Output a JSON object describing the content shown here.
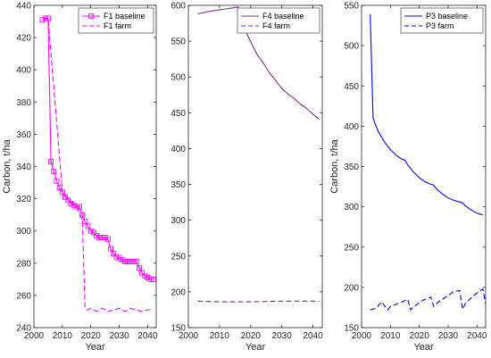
{
  "chart_data": [
    {
      "type": "line",
      "xlabel": "Year",
      "ylabel": "Carbon, t/ha",
      "xlim": [
        2000,
        2043
      ],
      "ylim": [
        240,
        440
      ],
      "xticks": [
        2000,
        2010,
        2020,
        2030,
        2040
      ],
      "yticks": [
        240,
        260,
        280,
        300,
        320,
        340,
        360,
        380,
        400,
        420,
        440
      ],
      "color": "#ff00ff",
      "legend_position": "top-right",
      "series": [
        {
          "name": "F1 baseline",
          "style": "solid",
          "marker": "square",
          "x": [
            2003,
            2004,
            2005,
            2006,
            2007,
            2008,
            2009,
            2010,
            2011,
            2012,
            2013,
            2014,
            2015,
            2016,
            2017,
            2018,
            2019,
            2020,
            2021,
            2022,
            2023,
            2024,
            2025,
            2026,
            2027,
            2028,
            2029,
            2030,
            2031,
            2032,
            2033,
            2034,
            2035,
            2036,
            2037,
            2038,
            2039,
            2040,
            2041,
            2042
          ],
          "y": [
            431,
            432,
            432,
            343,
            337,
            331,
            327,
            324,
            321,
            319,
            317,
            316,
            315,
            315,
            310,
            306,
            303,
            300,
            299,
            297,
            296,
            296,
            296,
            295,
            289,
            286,
            284,
            283,
            282,
            281,
            281,
            281,
            281,
            281,
            277,
            274,
            272,
            271,
            270,
            270
          ]
        },
        {
          "name": "F1 farm",
          "style": "dashed",
          "x": [
            2003,
            2005,
            2010,
            2015,
            2017,
            2018,
            2019,
            2020,
            2022,
            2024,
            2026,
            2028,
            2030,
            2032,
            2034,
            2036,
            2038,
            2040,
            2042
          ],
          "y": [
            431,
            432,
            324,
            315,
            307,
            252,
            251,
            252,
            250,
            252,
            250,
            251,
            252,
            250,
            252,
            251,
            250,
            251,
            251
          ]
        }
      ]
    },
    {
      "type": "line",
      "xlabel": "Year",
      "ylabel": "",
      "xlim": [
        2000,
        2043
      ],
      "ylim": [
        150,
        600
      ],
      "xticks": [
        2000,
        2010,
        2020,
        2030,
        2040
      ],
      "yticks": [
        150,
        200,
        250,
        300,
        350,
        400,
        450,
        500,
        550,
        600
      ],
      "color": "#7e2f8e",
      "legend_position": "top-right",
      "series": [
        {
          "name": "F4 baseline",
          "style": "solid",
          "x": [
            2003,
            2006,
            2009,
            2012,
            2015,
            2016,
            2017,
            2018,
            2020,
            2022,
            2024,
            2026,
            2028,
            2030,
            2032,
            2034,
            2036,
            2038,
            2040,
            2042
          ],
          "y": [
            588,
            591,
            593,
            595,
            597,
            598,
            584,
            568,
            549,
            532,
            520,
            506,
            495,
            484,
            476,
            470,
            462,
            456,
            448,
            441
          ]
        },
        {
          "name": "F4 farm",
          "style": "dashed",
          "x": [
            2003,
            2010,
            2020,
            2030,
            2042
          ],
          "y": [
            187,
            186,
            186,
            187,
            187
          ]
        }
      ]
    },
    {
      "type": "line",
      "xlabel": "Year",
      "ylabel": "Carbon, t/ha",
      "xlim": [
        2000,
        2043
      ],
      "ylim": [
        150,
        550
      ],
      "xticks": [
        2000,
        2010,
        2020,
        2030,
        2040
      ],
      "yticks": [
        150,
        200,
        250,
        300,
        350,
        400,
        450,
        500,
        550
      ],
      "color": "#0000ff",
      "legend_position": "top-right",
      "series": [
        {
          "name": "P3 baseline",
          "style": "solid",
          "x": [
            2003,
            2004,
            2005,
            2006,
            2008,
            2010,
            2012,
            2014,
            2015,
            2016,
            2018,
            2020,
            2022,
            2024,
            2025,
            2026,
            2028,
            2030,
            2032,
            2034,
            2035,
            2036,
            2038,
            2040,
            2042
          ],
          "y": [
            539,
            410,
            400,
            392,
            380,
            371,
            364,
            359,
            358,
            352,
            343,
            336,
            331,
            328,
            327,
            322,
            316,
            311,
            308,
            306,
            305,
            301,
            296,
            292,
            290
          ]
        },
        {
          "name": "P3 farm",
          "style": "dashed",
          "x": [
            2003,
            2005,
            2007,
            2009,
            2010,
            2012,
            2014,
            2016,
            2017,
            2018,
            2019,
            2020,
            2022,
            2024,
            2025,
            2027,
            2028,
            2030,
            2032,
            2034,
            2035,
            2036,
            2038,
            2040,
            2042,
            2043
          ],
          "y": [
            172,
            174,
            182,
            172,
            176,
            179,
            182,
            185,
            172,
            176,
            178,
            182,
            185,
            188,
            176,
            183,
            185,
            190,
            195,
            196,
            173,
            180,
            187,
            193,
            198,
            180
          ]
        }
      ]
    }
  ]
}
